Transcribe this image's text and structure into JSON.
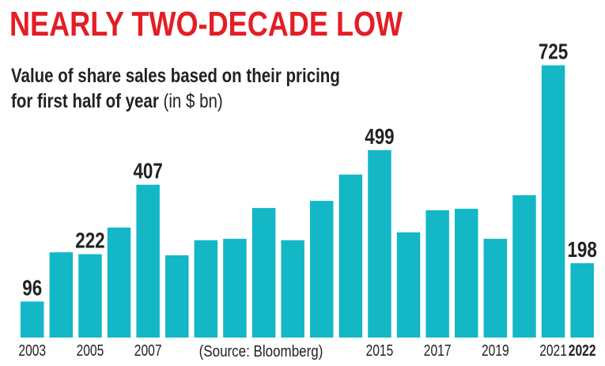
{
  "chart_data": {
    "type": "bar",
    "title": "NEARLY TWO-DECADE LOW",
    "subtitle_line1": "Value of share sales based on their pricing",
    "subtitle_line2": "for first half of year",
    "unit": "(in $ bn)",
    "source": "(Source: Bloomberg)",
    "categories": [
      "2003",
      "2004",
      "2005",
      "2006",
      "2007",
      "2008",
      "2009",
      "2010",
      "2011",
      "2012",
      "2013",
      "2014",
      "2015",
      "2016",
      "2017",
      "2018",
      "2019",
      "2020",
      "2021",
      "2022"
    ],
    "values": [
      96,
      227,
      222,
      293,
      407,
      219,
      259,
      263,
      345,
      259,
      364,
      434,
      499,
      280,
      339,
      343,
      263,
      379,
      725,
      198
    ],
    "data_labels": {
      "2003": "96",
      "2005": "222",
      "2007": "407",
      "2015": "499",
      "2021": "725",
      "2022": "198"
    },
    "tick_labels": [
      "2003",
      "2005",
      "2007",
      "2015",
      "2017",
      "2019",
      "2021",
      "2022"
    ],
    "bold_tick": "2022",
    "ylim": [
      0,
      760
    ],
    "grid": false,
    "colors": {
      "bar": "#13b7c6",
      "title": "#e31e24",
      "text": "#222222"
    }
  }
}
